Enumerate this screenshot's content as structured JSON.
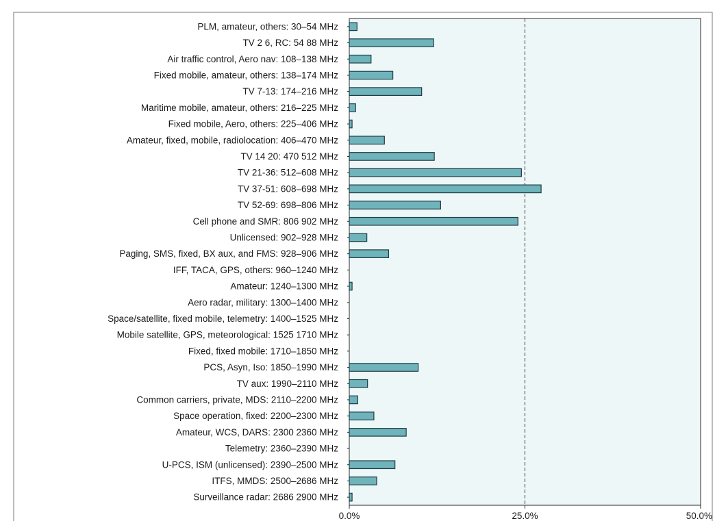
{
  "chart_data": {
    "type": "bar",
    "orientation": "horizontal",
    "categories": [
      "PLM, amateur, others: 30–54 MHz",
      "TV 2 6, RC: 54 88 MHz",
      "Air traffic control, Aero nav: 108–138 MHz",
      "Fixed mobile, amateur, others: 138–174 MHz",
      "TV 7-13: 174–216 MHz",
      "Maritime mobile, amateur, others: 216–225 MHz",
      "Fixed mobile, Aero, others: 225–406 MHz",
      "Amateur, fixed, mobile, radiolocation: 406–470 MHz",
      "TV 14 20: 470 512 MHz",
      "TV 21-36: 512–608 MHz",
      "TV 37-51: 608–698 MHz",
      "TV 52-69: 698–806 MHz",
      "Cell phone and SMR: 806 902 MHz",
      "Unlicensed: 902–928 MHz",
      "Paging, SMS, fixed, BX aux, and FMS: 928–906 MHz",
      "IFF, TACA, GPS, others: 960–1240 MHz",
      "Amateur: 1240–1300 MHz",
      "Aero radar, military: 1300–1400 MHz",
      "Space/satellite, fixed mobile, telemetry: 1400–1525 MHz",
      "Mobile satellite, GPS, meteorological: 1525 1710 MHz",
      "Fixed, fixed mobile: 1710–1850 MHz",
      "PCS, Asyn, Iso: 1850–1990 MHz",
      "TV aux: 1990–2110 MHz",
      "Common carriers, private, MDS: 2110–2200 MHz",
      "Space operation, fixed: 2200–2300 MHz",
      "Amateur, WCS, DARS: 2300 2360 MHz",
      "Telemetry: 2360–2390 MHz",
      "U-PCS, ISM (unlicensed): 2390–2500 MHz",
      "ITFS, MMDS: 2500–2686 MHz",
      "Surveillance radar: 2686 2900 MHz"
    ],
    "values": [
      1.1,
      12.0,
      3.1,
      6.2,
      10.3,
      0.9,
      0.4,
      5.0,
      12.1,
      24.5,
      27.3,
      13.0,
      24.0,
      2.5,
      5.6,
      0.0,
      0.4,
      0.0,
      0.0,
      0.0,
      0.0,
      9.8,
      2.6,
      1.2,
      3.5,
      8.1,
      0.0,
      6.5,
      3.9,
      0.4
    ],
    "xlim": [
      0,
      50
    ],
    "x_ticks": [
      "0.0%",
      "25.0%",
      "50.0%"
    ],
    "reference_line": 25,
    "grid": false,
    "colors": {
      "bar_fill": "#6fb3bb",
      "bar_stroke": "#1e3c44",
      "plot_bg": "#eef7f8",
      "axis": "#2a2a2a",
      "frame": "#7a7a7a"
    }
  }
}
